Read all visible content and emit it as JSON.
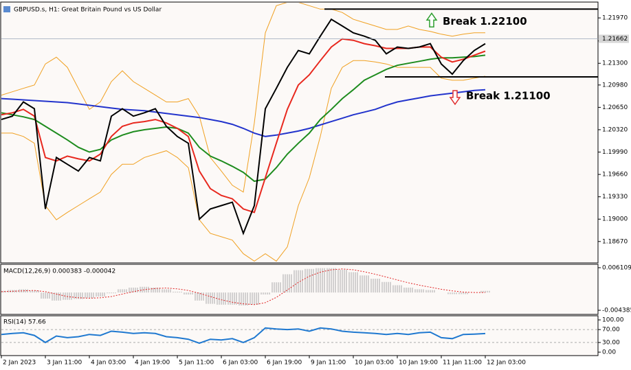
{
  "chart_data": [
    {
      "type": "line",
      "title": "GBPUSD.s, H1:  Great Britain Pound vs US Dollar",
      "categories": [
        "2 Jan 2023",
        null,
        null,
        null,
        "3 Jan 11:00",
        null,
        null,
        null,
        "4 Jan 03:00",
        null,
        null,
        null,
        "4 Jan 19:00",
        null,
        null,
        null,
        "5 Jan 11:00",
        null,
        null,
        null,
        "6 Jan 03:00",
        null,
        null,
        null,
        "6 Jan 19:00",
        null,
        null,
        null,
        "9 Jan 11:00",
        null,
        null,
        null,
        "10 Jan 03:00",
        null,
        null,
        null,
        "10 Jan 19:00",
        null,
        null,
        null,
        "11 Jan 11:00",
        null,
        null,
        null,
        "12 Jan 03:00"
      ],
      "series": [
        {
          "color": "#f0a020",
          "values": [
            1.2083,
            1.2088,
            1.2093,
            1.2098,
            1.2129,
            1.2139,
            1.2124,
            1.2093,
            1.2062,
            1.2073,
            1.2103,
            1.2119,
            1.2103,
            1.2093,
            1.2083,
            1.2073,
            1.2073,
            1.2078,
            1.2052,
            1.1991,
            1.1971,
            1.195,
            1.194,
            1.2042,
            1.2175,
            1.2215,
            1.222,
            1.222,
            1.2215,
            1.221,
            1.221,
            1.2205,
            1.2195,
            1.219,
            1.2185,
            1.218,
            1.218,
            1.2185,
            1.218,
            1.2177,
            1.2173,
            1.217,
            1.2173,
            1.2175,
            1.2175
          ]
        },
        {
          "color": "#f0a020",
          "values": [
            1.2027,
            1.2027,
            1.2022,
            1.2012,
            1.192,
            1.1899,
            1.191,
            1.192,
            1.193,
            1.194,
            1.1966,
            1.1981,
            1.1981,
            1.1991,
            1.1996,
            1.2001,
            1.1991,
            1.1976,
            1.1899,
            1.1879,
            1.1874,
            1.1869,
            1.1849,
            1.1838,
            1.1849,
            1.1838,
            1.1859,
            1.192,
            1.1961,
            1.2022,
            1.2093,
            1.2124,
            1.2134,
            1.2134,
            1.2132,
            1.2129,
            1.2124,
            1.2124,
            1.2124,
            1.2124,
            1.2108,
            1.2105,
            1.2105,
            1.2108,
            1.2111
          ]
        },
        {
          "color": "#2233cc",
          "values": [
            1.2078,
            1.2077,
            1.2076,
            1.2075,
            1.2074,
            1.2073,
            1.2072,
            1.207,
            1.2068,
            1.2066,
            1.2064,
            1.2062,
            1.2061,
            1.206,
            1.2058,
            1.2056,
            1.2054,
            1.2052,
            1.205,
            1.2047,
            1.2044,
            1.204,
            1.2034,
            1.2027,
            1.2022,
            1.2024,
            1.2027,
            1.203,
            1.2034,
            1.2039,
            1.2044,
            1.2049,
            1.2054,
            1.2058,
            1.2062,
            1.2068,
            1.2073,
            1.2076,
            1.2079,
            1.2082,
            1.2084,
            1.2086,
            1.2088,
            1.209,
            1.2091
          ]
        },
        {
          "color": "#1e8c1e",
          "values": [
            1.2057,
            1.2054,
            1.2051,
            1.2047,
            1.2037,
            1.2027,
            1.2017,
            1.2006,
            1.1999,
            1.2003,
            1.2017,
            1.2024,
            1.2029,
            1.2032,
            1.2034,
            1.2036,
            1.2034,
            1.2027,
            1.2006,
            1.1993,
            1.1986,
            1.1978,
            1.1969,
            1.1956,
            1.1959,
            1.1976,
            1.1996,
            1.2012,
            1.2027,
            1.2047,
            1.2062,
            1.2078,
            1.2091,
            1.2105,
            1.2113,
            1.2121,
            1.2127,
            1.213,
            1.2133,
            1.2136,
            1.2138,
            1.2138,
            1.2139,
            1.214,
            1.2142
          ]
        },
        {
          "color": "#e8281e",
          "values": [
            1.2054,
            1.2057,
            1.2062,
            1.2052,
            1.1991,
            1.1986,
            1.1993,
            1.1989,
            1.1986,
            1.1996,
            1.2022,
            1.2037,
            1.2042,
            1.2044,
            1.2047,
            1.2042,
            1.2034,
            1.2022,
            1.1971,
            1.1945,
            1.1935,
            1.193,
            1.1915,
            1.191,
            1.1961,
            1.2012,
            1.2062,
            1.2098,
            1.2113,
            1.2134,
            1.2154,
            1.2166,
            1.2164,
            1.2159,
            1.2156,
            1.2152,
            1.2152,
            1.2152,
            1.2154,
            1.2154,
            1.2139,
            1.2132,
            1.2136,
            1.2142,
            1.2148
          ]
        },
        {
          "color": "#000000",
          "values": [
            1.2047,
            1.2052,
            1.2073,
            1.2063,
            1.1915,
            1.1991,
            1.1981,
            1.1971,
            1.1991,
            1.1986,
            1.2052,
            1.2063,
            1.2052,
            1.2057,
            1.2063,
            1.2037,
            1.2022,
            1.2012,
            1.19,
            1.1915,
            1.192,
            1.1925,
            1.1879,
            1.192,
            1.2063,
            1.2093,
            1.2124,
            1.2149,
            1.2144,
            1.217,
            1.2195,
            1.2185,
            1.2175,
            1.217,
            1.2164,
            1.2144,
            1.2154,
            1.2152,
            1.2154,
            1.2159,
            1.2129,
            1.2114,
            1.2134,
            1.2149,
            1.2159
          ]
        }
      ],
      "ylim": [
        1.18354,
        1.22204
      ],
      "yticks": [
        {
          "value": 1.2197,
          "label": "1.21970"
        },
        {
          "value": 1.2163,
          "label": "1.21630"
        },
        {
          "value": 1.213,
          "label": "1.21300"
        },
        {
          "value": 1.2098,
          "label": "1.20980"
        },
        {
          "value": 1.2065,
          "label": "1.20650"
        },
        {
          "value": 1.2032,
          "label": "1.20320"
        },
        {
          "value": 1.1999,
          "label": "1.19990"
        },
        {
          "value": 1.1966,
          "label": "1.19660"
        },
        {
          "value": 1.1933,
          "label": "1.19330"
        },
        {
          "value": 1.19,
          "label": "1.19000"
        },
        {
          "value": 1.1867,
          "label": "1.18670"
        }
      ],
      "last_price": 1.21662,
      "levels": [
        {
          "value": 1.221,
          "label": "Break 1.22100",
          "color": "#2e9e2e",
          "direction": "up"
        },
        {
          "value": 1.211,
          "label": "Break 1.21100",
          "color": "#e03030",
          "direction": "down"
        }
      ]
    },
    {
      "type": "bar",
      "title": "MACD(12,26,9) 0.000383 -0.000042",
      "series": [
        {
          "color": "#a8a8a8",
          "style": "bar",
          "values": [
            0.0004,
            0.0006,
            0.0008,
            0.0005,
            -0.0015,
            -0.002,
            -0.0018,
            -0.0016,
            -0.0014,
            -0.001,
            -0.0002,
            0.0008,
            0.0012,
            0.0014,
            0.0012,
            0.0008,
            0.0002,
            -0.0005,
            -0.002,
            -0.0028,
            -0.003,
            -0.003,
            -0.0032,
            -0.003,
            -0.0005,
            0.0025,
            0.0045,
            0.0055,
            0.0058,
            0.006,
            0.006,
            0.0056,
            0.005,
            0.0042,
            0.0034,
            0.0026,
            0.0018,
            0.0012,
            0.0008,
            0.0006,
            0,
            -0.0004,
            -0.0004,
            0,
            0.0004
          ]
        },
        {
          "color": "#e02020",
          "style": "dotted",
          "values": [
            0.0002,
            0.0003,
            0.0004,
            0.0005,
            0.0002,
            -0.0004,
            -0.001,
            -0.0013,
            -0.0014,
            -0.0013,
            -0.001,
            -0.0004,
            0.0002,
            0.0007,
            0.001,
            0.0011,
            0.0009,
            0.0005,
            -0.0002,
            -0.001,
            -0.0018,
            -0.0024,
            -0.0028,
            -0.003,
            -0.0025,
            -0.0012,
            0.0006,
            0.0025,
            0.004,
            0.005,
            0.0056,
            0.0058,
            0.0056,
            0.0051,
            0.0045,
            0.0038,
            0.0031,
            0.0024,
            0.0018,
            0.0013,
            0.0008,
            0.0004,
            0.0001,
            0,
            0
          ]
        }
      ],
      "ylim": [
        -0.0054,
        0.00695
      ],
      "yticks": [
        0.006109,
        -0.004385
      ]
    },
    {
      "type": "line",
      "title": "RSI(14) 57.66",
      "series": [
        {
          "color": "#1e78d0",
          "values": [
            55,
            58,
            60,
            52,
            30,
            50,
            45,
            48,
            55,
            52,
            65,
            62,
            58,
            60,
            58,
            48,
            45,
            40,
            28,
            40,
            38,
            42,
            30,
            45,
            75,
            72,
            70,
            72,
            65,
            75,
            72,
            65,
            62,
            60,
            58,
            55,
            58,
            55,
            60,
            62,
            45,
            42,
            55,
            56,
            57.66
          ]
        }
      ],
      "ylim": [
        -10.6,
        112.8
      ],
      "yticks": [
        {
          "value": 100,
          "label": "100.00"
        },
        {
          "value": 70,
          "label": "70.00"
        },
        {
          "value": 30,
          "label": "30.00"
        },
        {
          "value": 0,
          "label": "0.00"
        }
      ],
      "dashed_ticks": true
    }
  ]
}
